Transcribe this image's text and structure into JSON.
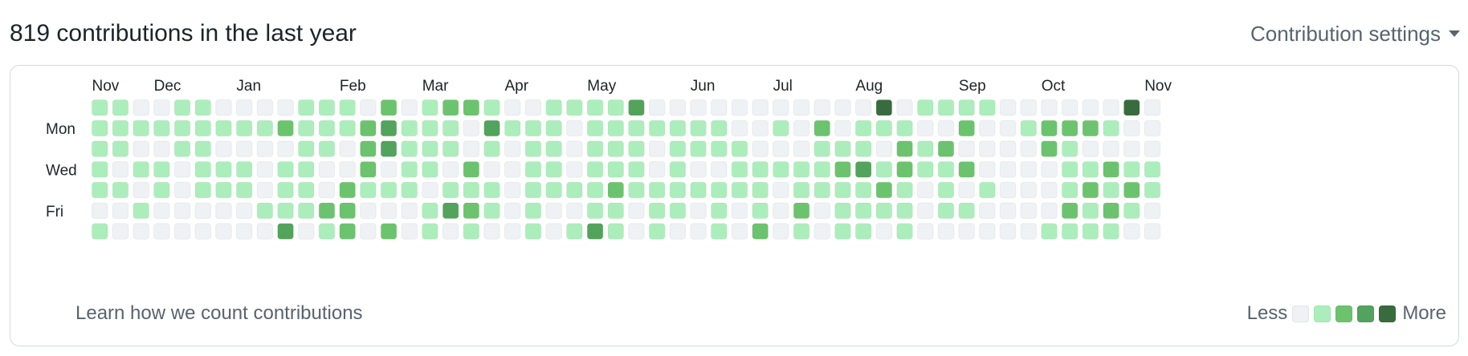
{
  "header": {
    "title": "819 contributions in the last year",
    "settings_label": "Contribution settings"
  },
  "months": [
    {
      "label": "Nov",
      "week": 0
    },
    {
      "label": "Dec",
      "week": 3
    },
    {
      "label": "Jan",
      "week": 7
    },
    {
      "label": "Feb",
      "week": 12
    },
    {
      "label": "Mar",
      "week": 16
    },
    {
      "label": "Apr",
      "week": 20
    },
    {
      "label": "May",
      "week": 24
    },
    {
      "label": "Jun",
      "week": 29
    },
    {
      "label": "Jul",
      "week": 33
    },
    {
      "label": "Aug",
      "week": 37
    },
    {
      "label": "Sep",
      "week": 42
    },
    {
      "label": "Oct",
      "week": 46
    },
    {
      "label": "Nov",
      "week": 51
    }
  ],
  "day_labels": [
    {
      "label": "Mon",
      "row": 1
    },
    {
      "label": "Wed",
      "row": 3
    },
    {
      "label": "Fri",
      "row": 5
    }
  ],
  "levels": [
    "1100110000111020122100111130000000000040111100000040",
    "1111111112111231110311101111111001020111002001222100",
    "1100110000110231110101101110111100011102120000210000",
    "1011011101100201102001101110100111112312112000011211",
    "1101011101102111011101111211111110111121010100012121",
    "0010000011122000132101001101101010201111011000021210",
    "1000000003012020101001013101001020101101000000111100"
  ],
  "colors": {
    "level0": "#eff2f5",
    "level1": "#aceebb",
    "level2": "#6bc46d",
    "level3": "#52a35b",
    "level4": "#386c3e"
  },
  "footer": {
    "learn_label": "Learn how we count contributions",
    "less_label": "Less",
    "more_label": "More"
  }
}
